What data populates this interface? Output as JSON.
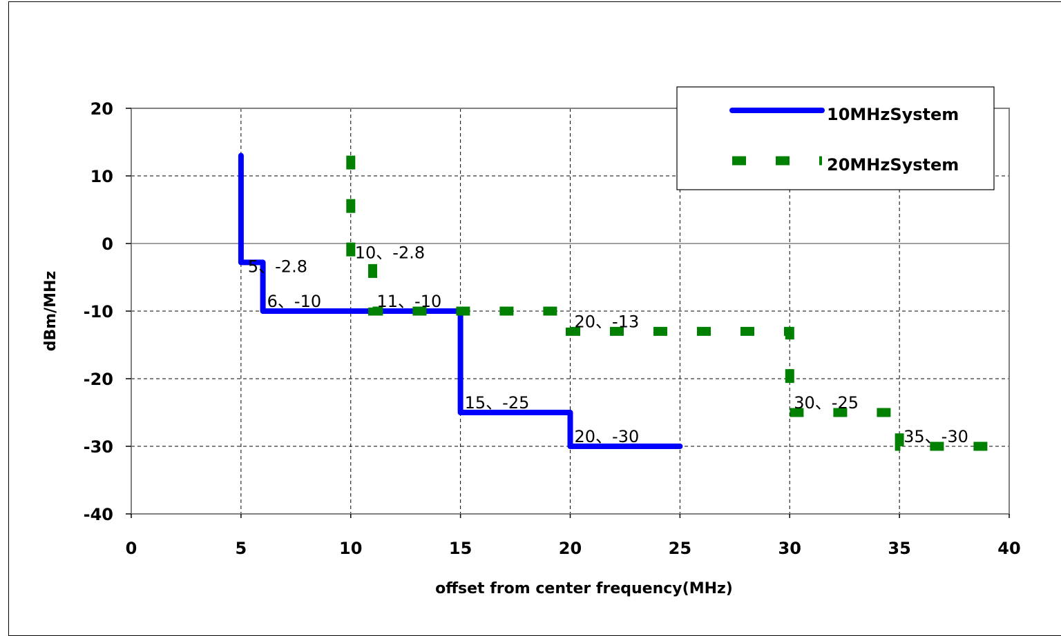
{
  "chart_data": {
    "type": "line",
    "xlabel": "offset from center frequency(MHz)",
    "ylabel": "dBm/MHz",
    "xlim": [
      0,
      40
    ],
    "ylim": [
      -40,
      20
    ],
    "x_ticks": [
      0,
      5,
      10,
      15,
      20,
      25,
      30,
      35,
      40
    ],
    "y_ticks": [
      20,
      10,
      0,
      -10,
      -20,
      -30,
      -40
    ],
    "grid": true,
    "legend_position": "top-right",
    "series": [
      {
        "name": "10MHzSystem",
        "color": "#0000ff",
        "style": "solid",
        "x": [
          5,
          5,
          6,
          6,
          15,
          15,
          20,
          20,
          25
        ],
        "y": [
          13,
          -2.8,
          -2.8,
          -10,
          -10,
          -25,
          -25,
          -30,
          -30
        ]
      },
      {
        "name": "20MHzSystem",
        "color": "#008000",
        "style": "dashed",
        "x": [
          10,
          10,
          11,
          11,
          20,
          20,
          30,
          30,
          35,
          35,
          40
        ],
        "y": [
          13,
          -2.8,
          -2.8,
          -10,
          -10,
          -13,
          -13,
          -25,
          -25,
          -30,
          -30
        ]
      }
    ],
    "annotations": [
      {
        "text": "5、-2.8",
        "x": 5,
        "y": -2.8,
        "series": 0
      },
      {
        "text": "6、-10",
        "x": 6,
        "y": -10,
        "series": 0
      },
      {
        "text": "15、-25",
        "x": 15,
        "y": -25,
        "series": 0
      },
      {
        "text": "20、-30",
        "x": 20,
        "y": -30,
        "series": 0
      },
      {
        "text": "10、-2.8",
        "x": 10,
        "y": -2.8,
        "series": 1
      },
      {
        "text": "11、-10",
        "x": 11,
        "y": -10,
        "series": 1
      },
      {
        "text": "20、-13",
        "x": 20,
        "y": -13,
        "series": 1
      },
      {
        "text": "30、-25",
        "x": 30,
        "y": -25,
        "series": 1
      },
      {
        "text": "35、-30",
        "x": 35,
        "y": -30,
        "series": 1
      }
    ]
  }
}
